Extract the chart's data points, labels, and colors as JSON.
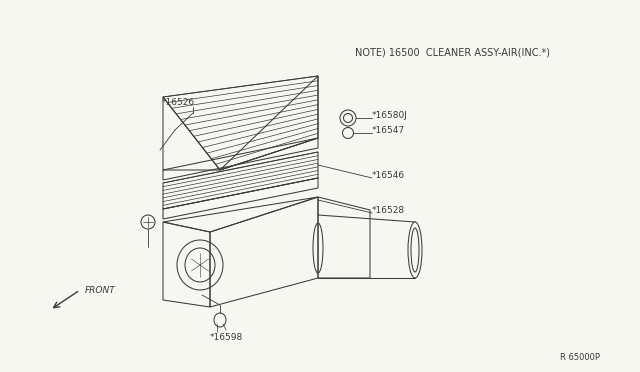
{
  "bg_color": "#f7f7f2",
  "line_color": "#3a3a3a",
  "title_text": "NOTE) 16500  CLEANER ASSY-AIR(INC.*)",
  "diagram_ref": "R 65000P",
  "label_fs": 6.5,
  "title_fs": 7.0
}
